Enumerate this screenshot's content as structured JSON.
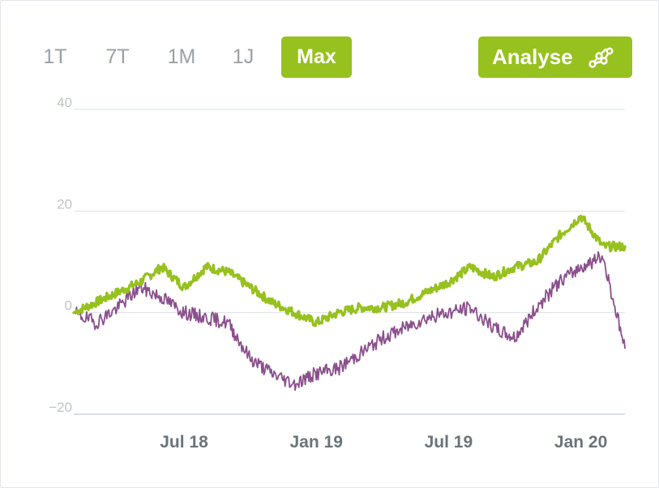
{
  "range_selector": {
    "options": [
      "1T",
      "7T",
      "1M",
      "1J",
      "Max"
    ],
    "active": "Max"
  },
  "analyse_button": {
    "label": "Analyse",
    "icon": "network-nodes-icon"
  },
  "colors": {
    "accent": "#97c11f",
    "series_primary": "#97c11f",
    "series_secondary": "#8a4f8c",
    "grid": "#dde1e5"
  },
  "chart_data": {
    "type": "line",
    "title": "",
    "xlabel": "",
    "ylabel": "",
    "ylim": [
      -20,
      40
    ],
    "y_ticks": [
      40,
      20,
      0,
      -20
    ],
    "y_tick_labels": [
      "40",
      "20",
      "0",
      "−20"
    ],
    "x_ticks": [
      "2018-07",
      "2019-01",
      "2019-07",
      "2020-01"
    ],
    "x_tick_labels": [
      "Jul 18",
      "Jan 19",
      "Jul 19",
      "Jan 20"
    ],
    "x_range": [
      "2018-02",
      "2020-03"
    ],
    "grid": true,
    "legend": "none",
    "series": [
      {
        "color": "#97c11f",
        "x": [
          "2018-02",
          "2018-03",
          "2018-04",
          "2018-05",
          "2018-06",
          "2018-07",
          "2018-08",
          "2018-09",
          "2018-10",
          "2018-11",
          "2018-12",
          "2019-01",
          "2019-02",
          "2019-03",
          "2019-04",
          "2019-05",
          "2019-06",
          "2019-07",
          "2019-08",
          "2019-09",
          "2019-10",
          "2019-11",
          "2019-12",
          "2020-01",
          "2020-02",
          "2020-03"
        ],
        "values": [
          0,
          2,
          4,
          6,
          9,
          5,
          9,
          8,
          5,
          2,
          0,
          -2,
          0,
          1,
          1,
          2,
          4,
          6,
          9,
          7,
          9,
          10,
          15,
          19,
          13,
          13
        ]
      },
      {
        "color": "#8a4f8c",
        "x": [
          "2018-02",
          "2018-03",
          "2018-04",
          "2018-05",
          "2018-06",
          "2018-07",
          "2018-08",
          "2018-09",
          "2018-10",
          "2018-11",
          "2018-12",
          "2019-01",
          "2019-02",
          "2019-03",
          "2019-04",
          "2019-05",
          "2019-06",
          "2019-07",
          "2019-08",
          "2019-09",
          "2019-10",
          "2019-11",
          "2019-12",
          "2020-01",
          "2020-02",
          "2020-03"
        ],
        "values": [
          0,
          -2,
          1,
          5,
          3,
          0,
          -1,
          -2,
          -9,
          -12,
          -14,
          -12,
          -11,
          -8,
          -5,
          -3,
          -1,
          0,
          1,
          -3,
          -5,
          1,
          6,
          9,
          11,
          -7
        ]
      }
    ]
  }
}
